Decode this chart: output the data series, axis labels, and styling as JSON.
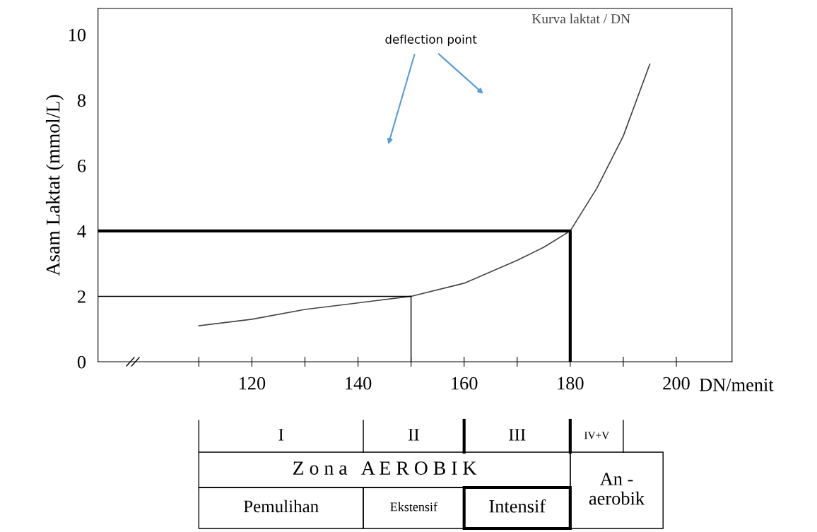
{
  "chart_data": {
    "type": "line",
    "xlabel": "DN/menit",
    "ylabel": "Asam Laktat (mmol/L)",
    "series": [
      {
        "name": "Kurva laktat / DN",
        "color": "#444444",
        "x": [
          110,
          120,
          130,
          140,
          150,
          160,
          170,
          175,
          180,
          185,
          190,
          195
        ],
        "values": [
          1.1,
          1.3,
          1.6,
          1.8,
          2.0,
          2.4,
          3.1,
          3.5,
          4.0,
          5.3,
          6.9,
          9.1
        ]
      },
      {
        "type": "line",
        "color": "#000000",
        "x": [
          91,
          180,
          180
        ],
        "values": [
          4,
          4,
          0
        ]
      },
      {
        "type": "line",
        "color": "#000000",
        "x": [
          91,
          150,
          150
        ],
        "values": [
          2,
          2,
          0
        ]
      }
    ],
    "xlim": [
      91,
      210.5
    ],
    "ylim": [
      0,
      10.8
    ],
    "xticks": [
      {
        "value": 110,
        "label": null
      },
      120,
      {
        "value": 130,
        "label": null
      },
      140,
      {
        "value": 150,
        "label": null
      },
      160,
      {
        "value": 170,
        "label": null
      },
      180,
      {
        "value": 190,
        "label": null
      },
      200
    ],
    "yticks": [
      0,
      2,
      4,
      6,
      8,
      10
    ],
    "grid": false,
    "legend": false,
    "marker": "none",
    "line_style": "solid",
    "annotations": [
      "deflection point",
      "I",
      "II",
      "III",
      "IV+V",
      "Z o n a   A E R O B I K",
      "An -\naerobik",
      "Pemulihan",
      "Ekstensif",
      "Intensif"
    ]
  }
}
